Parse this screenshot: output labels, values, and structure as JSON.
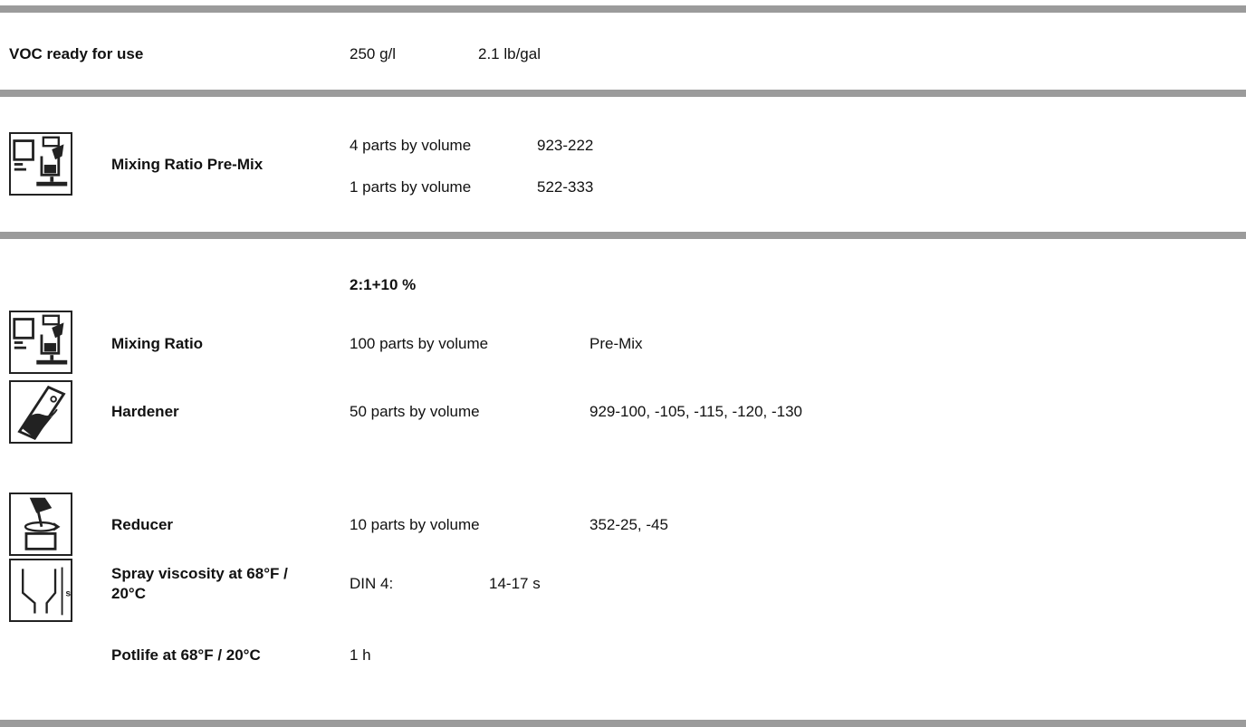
{
  "voc": {
    "label": "VOC ready for use",
    "value1": "250 g/l",
    "value2": "2.1 lb/gal"
  },
  "premix": {
    "label": "Mixing Ratio Pre-Mix",
    "rows": [
      {
        "amount": "4 parts by volume",
        "product": "923-222"
      },
      {
        "amount": "1 parts by volume",
        "product": "522-333"
      }
    ]
  },
  "mixing": {
    "ratio_heading": "2:1+10 %",
    "mixing_ratio": {
      "label": "Mixing Ratio",
      "amount": "100 parts by volume",
      "product": "Pre-Mix"
    },
    "hardener": {
      "label": "Hardener",
      "amount": "50 parts by volume",
      "product": "929-100, -105, -115, -120, -130"
    },
    "reducer": {
      "label": "Reducer",
      "amount": "10 parts by volume",
      "product": "352-25, -45"
    },
    "viscosity": {
      "label_line1": "Spray viscosity at 68°F /",
      "label_line2": "20°C",
      "method": "DIN 4:",
      "value": "14-17 s"
    },
    "potlife": {
      "label": "Potlife at 68°F / 20°C",
      "value": "1 h"
    }
  },
  "icons": [
    "mixing-scale-icon",
    "mixing-scale-icon",
    "hardener-can-icon",
    "reducer-stir-icon",
    "viscosity-cup-icon"
  ]
}
